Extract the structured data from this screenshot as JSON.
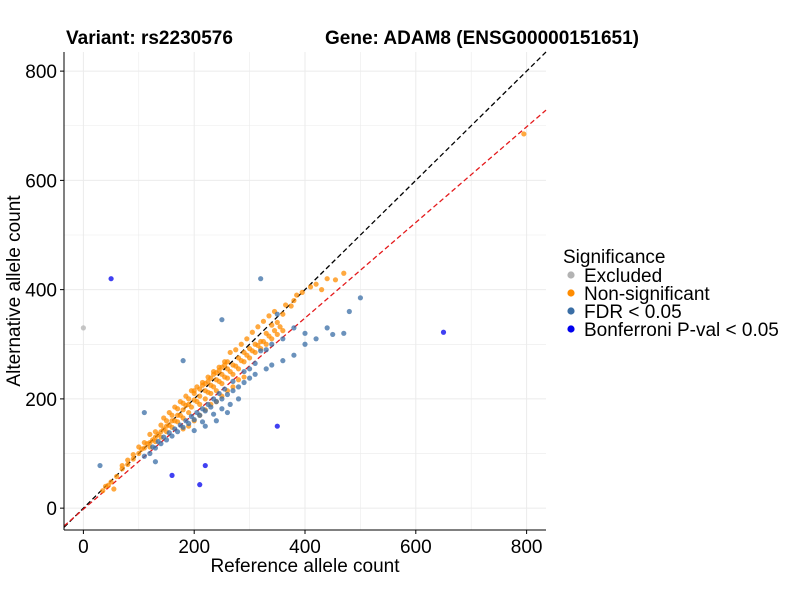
{
  "chart_data": {
    "type": "scatter",
    "title_variant": "Variant: rs2230576",
    "title_gene": "Gene: ADAM8 (ENSG00000151651)",
    "xlabel": "Reference allele count",
    "ylabel": "Alternative allele count",
    "xlim": [
      -35,
      835
    ],
    "ylim": [
      -40,
      835
    ],
    "xticks": [
      0,
      200,
      400,
      600,
      800
    ],
    "yticks": [
      0,
      200,
      400,
      600,
      800
    ],
    "grid": true,
    "reference_lines": [
      {
        "name": "identity",
        "slope": 1.0,
        "intercept": 0,
        "color": "#000000",
        "style": "dashed"
      },
      {
        "name": "fit",
        "slope": 0.875,
        "intercept": -2,
        "color": "#e41a1c",
        "style": "dashed"
      }
    ],
    "legend": {
      "title": "Significance",
      "position": "right",
      "entries": [
        {
          "label": "Excluded",
          "color": "#b3b3b3"
        },
        {
          "label": "Non-significant",
          "color": "#ff8c00"
        },
        {
          "label": "FDR < 0.05",
          "color": "#3a6ea5"
        },
        {
          "label": "Bonferroni P-val < 0.05",
          "color": "#0000ee"
        }
      ]
    },
    "series": [
      {
        "name": "Excluded",
        "color": "#b3b3b3",
        "points": [
          [
            0,
            330
          ]
        ]
      },
      {
        "name": "Non-significant",
        "color": "#ff8c00",
        "points": [
          [
            795,
            685
          ],
          [
            470,
            430
          ],
          [
            455,
            418
          ],
          [
            430,
            400
          ],
          [
            380,
            380
          ],
          [
            375,
            370
          ],
          [
            360,
            355
          ],
          [
            350,
            340
          ],
          [
            340,
            335
          ],
          [
            330,
            320
          ],
          [
            320,
            305
          ],
          [
            310,
            300
          ],
          [
            300,
            292
          ],
          [
            290,
            285
          ],
          [
            280,
            275
          ],
          [
            270,
            262
          ],
          [
            260,
            255
          ],
          [
            250,
            245
          ],
          [
            240,
            235
          ],
          [
            230,
            225
          ],
          [
            220,
            215
          ],
          [
            210,
            205
          ],
          [
            200,
            198
          ],
          [
            190,
            190
          ],
          [
            180,
            180
          ],
          [
            170,
            170
          ],
          [
            160,
            160
          ],
          [
            150,
            150
          ],
          [
            140,
            140
          ],
          [
            130,
            130
          ],
          [
            120,
            120
          ],
          [
            110,
            110
          ],
          [
            100,
            100
          ],
          [
            90,
            90
          ],
          [
            80,
            80
          ],
          [
            70,
            72
          ],
          [
            60,
            58
          ],
          [
            50,
            48
          ],
          [
            45,
            42
          ],
          [
            40,
            40
          ],
          [
            35,
            32
          ],
          [
            55,
            35
          ],
          [
            265,
            285
          ],
          [
            255,
            268
          ],
          [
            245,
            258
          ],
          [
            235,
            250
          ],
          [
            225,
            240
          ],
          [
            215,
            230
          ],
          [
            205,
            222
          ],
          [
            195,
            215
          ],
          [
            185,
            205
          ],
          [
            175,
            195
          ],
          [
            165,
            185
          ],
          [
            155,
            175
          ],
          [
            145,
            165
          ],
          [
            210,
            190
          ],
          [
            220,
            200
          ],
          [
            230,
            210
          ],
          [
            240,
            215
          ],
          [
            250,
            228
          ],
          [
            260,
            238
          ],
          [
            270,
            245
          ],
          [
            280,
            255
          ],
          [
            290,
            268
          ],
          [
            300,
            275
          ],
          [
            310,
            285
          ],
          [
            320,
            292
          ],
          [
            330,
            300
          ],
          [
            340,
            310
          ],
          [
            350,
            318
          ],
          [
            360,
            325
          ],
          [
            190,
            175
          ],
          [
            180,
            165
          ],
          [
            170,
            158
          ],
          [
            160,
            148
          ],
          [
            150,
            140
          ],
          [
            140,
            130
          ],
          [
            130,
            122
          ],
          [
            120,
            112
          ],
          [
            200,
            210
          ],
          [
            210,
            218
          ],
          [
            220,
            228
          ],
          [
            230,
            238
          ],
          [
            240,
            248
          ],
          [
            250,
            258
          ],
          [
            260,
            268
          ],
          [
            275,
            290
          ],
          [
            285,
            300
          ],
          [
            295,
            310
          ],
          [
            305,
            322
          ],
          [
            315,
            332
          ],
          [
            325,
            342
          ],
          [
            335,
            352
          ],
          [
            345,
            360
          ],
          [
            365,
            372
          ],
          [
            385,
            390
          ],
          [
            395,
            395
          ],
          [
            410,
            405
          ],
          [
            420,
            410
          ],
          [
            440,
            420
          ],
          [
            160,
            170
          ],
          [
            170,
            182
          ],
          [
            180,
            192
          ],
          [
            190,
            200
          ],
          [
            200,
            215
          ],
          [
            215,
            225
          ],
          [
            225,
            232
          ],
          [
            235,
            245
          ],
          [
            245,
            252
          ],
          [
            255,
            262
          ],
          [
            120,
            135
          ],
          [
            130,
            140
          ],
          [
            140,
            152
          ],
          [
            150,
            160
          ],
          [
            100,
            112
          ],
          [
            110,
            120
          ],
          [
            90,
            98
          ],
          [
            80,
            88
          ],
          [
            70,
            78
          ],
          [
            195,
            185
          ],
          [
            205,
            195
          ],
          [
            185,
            188
          ],
          [
            175,
            170
          ],
          [
            165,
            160
          ],
          [
            155,
            152
          ],
          [
            145,
            145
          ],
          [
            135,
            135
          ],
          [
            125,
            125
          ],
          [
            115,
            118
          ],
          [
            105,
            108
          ],
          [
            225,
            212
          ],
          [
            235,
            222
          ],
          [
            245,
            232
          ],
          [
            255,
            240
          ],
          [
            265,
            250
          ],
          [
            275,
            260
          ],
          [
            285,
            270
          ],
          [
            295,
            280
          ],
          [
            305,
            288
          ],
          [
            315,
            298
          ],
          [
            325,
            305
          ],
          [
            335,
            315
          ],
          [
            345,
            325
          ],
          [
            355,
            332
          ],
          [
            200,
            160
          ],
          [
            190,
            150
          ],
          [
            180,
            145
          ],
          [
            210,
            170
          ],
          [
            220,
            180
          ],
          [
            230,
            190
          ],
          [
            240,
            195
          ],
          [
            250,
            205
          ],
          [
            260,
            215
          ],
          [
            270,
            222
          ],
          [
            280,
            235
          ],
          [
            290,
            240
          ]
        ]
      },
      {
        "name": "FDR < 0.05",
        "color": "#3a6ea5",
        "points": [
          [
            320,
            420
          ],
          [
            250,
            345
          ],
          [
            480,
            360
          ],
          [
            500,
            385
          ],
          [
            470,
            320
          ],
          [
            450,
            318
          ],
          [
            420,
            310
          ],
          [
            400,
            300
          ],
          [
            380,
            280
          ],
          [
            360,
            270
          ],
          [
            340,
            262
          ],
          [
            330,
            255
          ],
          [
            310,
            245
          ],
          [
            300,
            238
          ],
          [
            290,
            230
          ],
          [
            280,
            222
          ],
          [
            270,
            215
          ],
          [
            260,
            208
          ],
          [
            250,
            200
          ],
          [
            240,
            195
          ],
          [
            230,
            185
          ],
          [
            220,
            178
          ],
          [
            210,
            170
          ],
          [
            200,
            162
          ],
          [
            190,
            155
          ],
          [
            180,
            148
          ],
          [
            170,
            140
          ],
          [
            160,
            132
          ],
          [
            150,
            125
          ],
          [
            140,
            118
          ],
          [
            130,
            110
          ],
          [
            120,
            100
          ],
          [
            110,
            95
          ],
          [
            130,
            85
          ],
          [
            30,
            78
          ],
          [
            110,
            175
          ],
          [
            180,
            270
          ],
          [
            360,
            310
          ],
          [
            340,
            300
          ],
          [
            320,
            288
          ],
          [
            310,
            265
          ],
          [
            300,
            255
          ],
          [
            290,
            250
          ],
          [
            270,
            232
          ],
          [
            255,
            218
          ],
          [
            245,
            210
          ],
          [
            235,
            200
          ],
          [
            225,
            190
          ],
          [
            215,
            182
          ],
          [
            205,
            175
          ],
          [
            195,
            168
          ],
          [
            185,
            160
          ],
          [
            175,
            152
          ],
          [
            165,
            145
          ],
          [
            155,
            138
          ],
          [
            145,
            130
          ],
          [
            135,
            122
          ],
          [
            125,
            112
          ],
          [
            260,
            175
          ],
          [
            240,
            160
          ],
          [
            220,
            150
          ],
          [
            200,
            142
          ],
          [
            350,
            355
          ],
          [
            440,
            330
          ],
          [
            400,
            320
          ],
          [
            380,
            330
          ],
          [
            330,
            290
          ],
          [
            280,
            200
          ],
          [
            265,
            190
          ],
          [
            250,
            182
          ],
          [
            235,
            172
          ],
          [
            215,
            158
          ]
        ]
      },
      {
        "name": "Bonferroni P-val < 0.05",
        "color": "#0000ee",
        "points": [
          [
            50,
            420
          ],
          [
            650,
            322
          ],
          [
            350,
            150
          ],
          [
            160,
            60
          ],
          [
            220,
            78
          ],
          [
            210,
            43
          ]
        ]
      }
    ]
  }
}
